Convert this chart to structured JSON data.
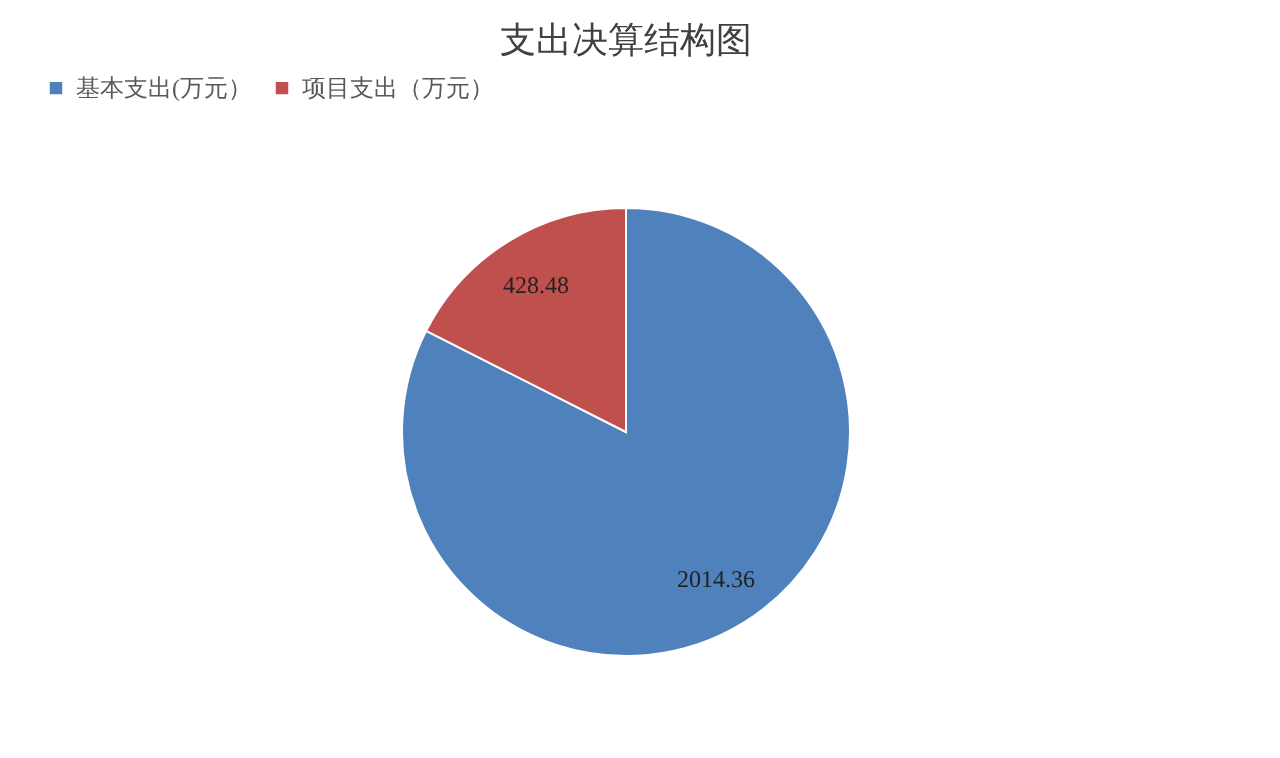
{
  "chart_data": {
    "type": "pie",
    "title": "支出决算结构图",
    "categories": [
      "基本支出(万元）",
      "项目支出（万元）"
    ],
    "values": [
      2014.36,
      428.48
    ],
    "colors": [
      "#4f81bd",
      "#c0504d"
    ],
    "legend": "top",
    "data_labels": true
  }
}
